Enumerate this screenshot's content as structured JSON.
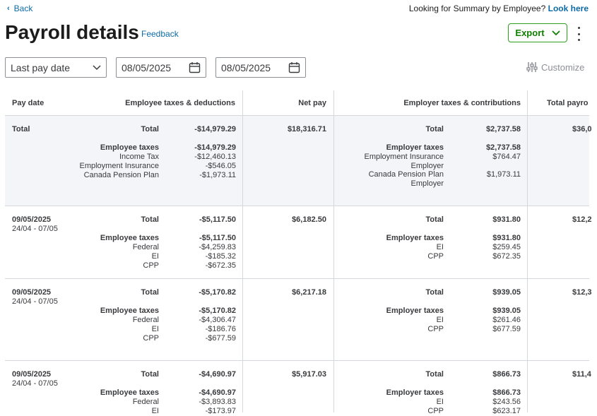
{
  "nav": {
    "back_label": "Back",
    "summary_prompt": "Looking for Summary by Employee?",
    "summary_link": "Look here"
  },
  "page": {
    "title": "Payroll details",
    "feedback_label": "Feedback"
  },
  "toolbar": {
    "export_label": "Export",
    "customize_label": "Customize"
  },
  "filters": {
    "date_type": "Last pay date",
    "start_date": "08/05/2025",
    "end_date": "08/05/2025"
  },
  "table": {
    "headers": {
      "pay_date": "Pay date",
      "employee_taxes": "Employee taxes & deductions",
      "net_pay": "Net pay",
      "employer_taxes": "Employer taxes & contributions",
      "total_payroll": "Total payro"
    },
    "total": {
      "label": "Total",
      "emp_total_label": "Total",
      "emp_total_value": "-$14,979.29",
      "emp_sub_labels": [
        "Employee taxes",
        "Income Tax",
        "Employment Insurance",
        "Canada Pension Plan"
      ],
      "emp_sub_values": [
        "-$14,979.29",
        "-$12,460.13",
        "-$546.05",
        "-$1,973.11"
      ],
      "net_pay": "$18,316.71",
      "er_total_label": "Total",
      "er_total_value": "$2,737.58",
      "er_group_label": "Employer taxes",
      "er_group_value": "$2,737.58",
      "er_ei_label_1": "Employment Insurance",
      "er_ei_label_2": "Employer",
      "er_ei_value": "$764.47",
      "er_cpp_label_1": "Canada Pension Plan",
      "er_cpp_label_2": "Employer",
      "er_cpp_value": "$1,973.11",
      "total_payroll": "$36,0"
    },
    "rows": [
      {
        "pay_date": "09/05/2025",
        "period": "24/04 - 07/05",
        "emp_total_label": "Total",
        "emp_total_value": "-$5,117.50",
        "emp_sub_labels": [
          "Employee taxes",
          "Federal",
          "EI",
          "CPP"
        ],
        "emp_sub_values": [
          "-$5,117.50",
          "-$4,259.83",
          "-$185.32",
          "-$672.35"
        ],
        "net_pay": "$6,182.50",
        "er_total_label": "Total",
        "er_total_value": "$931.80",
        "er_sub_labels": [
          "Employer taxes",
          "EI",
          "CPP"
        ],
        "er_sub_values": [
          "$931.80",
          "$259.45",
          "$672.35"
        ],
        "total_payroll": "$12,2"
      },
      {
        "pay_date": "09/05/2025",
        "period": "24/04 - 07/05",
        "emp_total_label": "Total",
        "emp_total_value": "-$5,170.82",
        "emp_sub_labels": [
          "Employee taxes",
          "Federal",
          "EI",
          "CPP"
        ],
        "emp_sub_values": [
          "-$5,170.82",
          "-$4,306.47",
          "-$186.76",
          "-$677.59"
        ],
        "net_pay": "$6,217.18",
        "er_total_label": "Total",
        "er_total_value": "$939.05",
        "er_sub_labels": [
          "Employer taxes",
          "EI",
          "CPP"
        ],
        "er_sub_values": [
          "$939.05",
          "$261.46",
          "$677.59"
        ],
        "total_payroll": "$12,3"
      },
      {
        "pay_date": "09/05/2025",
        "period": "24/04 - 07/05",
        "emp_total_label": "Total",
        "emp_total_value": "-$4,690.97",
        "emp_sub_labels": [
          "Employee taxes",
          "Federal",
          "EI"
        ],
        "emp_sub_values": [
          "-$4,690.97",
          "-$3,893.83",
          "-$173.97"
        ],
        "net_pay": "$5,917.03",
        "er_total_label": "Total",
        "er_total_value": "$866.73",
        "er_sub_labels": [
          "Employer taxes",
          "EI",
          "CPP"
        ],
        "er_sub_values": [
          "$866.73",
          "$243.56",
          "$623.17"
        ],
        "total_payroll": "$11,4"
      }
    ]
  }
}
